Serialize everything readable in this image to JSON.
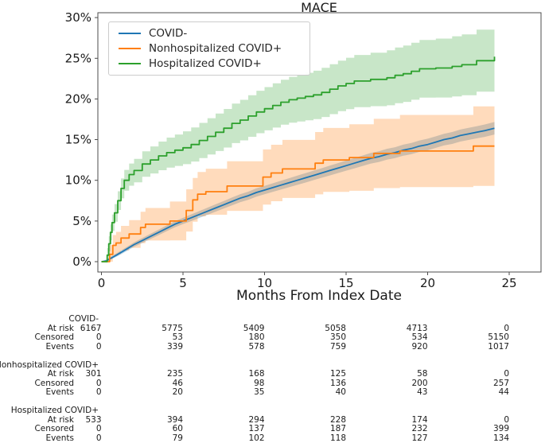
{
  "title": "MACE",
  "x_axis": {
    "label": "Months From Index Date",
    "ticks": [
      0,
      5,
      10,
      15,
      20,
      25
    ]
  },
  "y_axis": {
    "tick_labels": [
      "0%",
      "5%",
      "10%",
      "15%",
      "20%",
      "25%",
      "30%"
    ],
    "tick_values": [
      0,
      5,
      10,
      15,
      20,
      25,
      30
    ]
  },
  "legend": {
    "items": [
      {
        "label": "COVID-",
        "color": "#1f77b4"
      },
      {
        "label": "Nonhospitalized COVID+",
        "color": "#ff7f0e"
      },
      {
        "label": "Hospitalized COVID+",
        "color": "#2ca02c"
      }
    ]
  },
  "chart_data": {
    "type": "line",
    "title": "MACE",
    "xlabel": "Months From Index Date",
    "ylabel": "",
    "x_unit": "months",
    "y_unit": "percent cumulative incidence",
    "xlim": [
      0,
      27
    ],
    "ylim": [
      0,
      30
    ],
    "grid": false,
    "legend_position": "upper left",
    "series": [
      {
        "name": "COVID-",
        "color": "#1f77b4",
        "band_color": "rgba(31,119,180,0.30)",
        "step": false,
        "x": [
          0,
          0.3,
          1,
          1.5,
          2,
          2.5,
          3,
          3.5,
          4,
          4.5,
          5,
          5.5,
          6,
          6.5,
          7,
          7.5,
          8,
          8.5,
          9,
          9.5,
          10,
          10.5,
          11,
          11.5,
          12,
          12.5,
          13,
          13.5,
          14,
          14.5,
          15,
          15.5,
          16,
          16.5,
          17,
          17.5,
          18,
          18.5,
          19,
          19.5,
          20,
          20.5,
          21,
          21.5,
          22,
          22.5,
          23,
          23.5,
          24.1
        ],
        "y": [
          0,
          0.1,
          0.9,
          1.5,
          2.1,
          2.6,
          3.1,
          3.6,
          4.1,
          4.6,
          5.0,
          5.4,
          5.8,
          6.2,
          6.6,
          7.0,
          7.4,
          7.8,
          8.1,
          8.5,
          8.8,
          9.1,
          9.4,
          9.7,
          10.0,
          10.3,
          10.6,
          10.9,
          11.2,
          11.5,
          11.8,
          12.1,
          12.4,
          12.7,
          12.9,
          13.2,
          13.4,
          13.7,
          13.9,
          14.2,
          14.4,
          14.7,
          15.0,
          15.2,
          15.5,
          15.7,
          15.9,
          16.1,
          16.4
        ],
        "ci": [
          0,
          0.16,
          0.22,
          0.25,
          0.28,
          0.3,
          0.32,
          0.34,
          0.36,
          0.38,
          0.39,
          0.41,
          0.42,
          0.44,
          0.45,
          0.46,
          0.48,
          0.49,
          0.5,
          0.51,
          0.52,
          0.53,
          0.54,
          0.55,
          0.57,
          0.58,
          0.58,
          0.59,
          0.6,
          0.61,
          0.62,
          0.63,
          0.64,
          0.65,
          0.66,
          0.67,
          0.67,
          0.68,
          0.69,
          0.7,
          0.71,
          0.71,
          0.72,
          0.73,
          0.74,
          0.74,
          0.75,
          0.76,
          0.77
        ]
      },
      {
        "name": "Nonhospitalized COVID+",
        "color": "#ff7f0e",
        "band_color": "rgba(255,127,14,0.28)",
        "step": true,
        "x": [
          0,
          0.5,
          0.7,
          0.9,
          1.2,
          1.7,
          2.4,
          2.7,
          4.2,
          5.2,
          5.6,
          5.9,
          6.4,
          7.7,
          9.9,
          10.4,
          11.1,
          13.1,
          13.6,
          15.2,
          16.7,
          18.3,
          22.8,
          24.1
        ],
        "y": [
          0,
          0.9,
          2.0,
          2.3,
          2.9,
          3.4,
          4.2,
          4.6,
          5.0,
          6.3,
          7.6,
          8.3,
          8.6,
          9.3,
          10.4,
          10.9,
          11.4,
          12.1,
          12.5,
          12.8,
          13.3,
          13.6,
          14.2,
          14.2
        ],
        "ci": [
          0,
          1.15,
          1.27,
          1.37,
          1.5,
          1.7,
          1.93,
          2.0,
          2.39,
          2.6,
          2.68,
          2.73,
          2.83,
          3.05,
          3.39,
          3.47,
          3.57,
          3.83,
          3.93,
          4.09,
          4.26,
          4.44,
          4.89,
          5.02
        ]
      },
      {
        "name": "Hospitalized COVID+",
        "color": "#2ca02c",
        "band_color": "rgba(44,160,44,0.26)",
        "step": true,
        "x": [
          0,
          0.35,
          0.45,
          0.55,
          0.65,
          0.8,
          1.0,
          1.2,
          1.4,
          1.7,
          2.0,
          2.5,
          3.0,
          3.5,
          4.0,
          4.5,
          5.0,
          5.5,
          6.0,
          6.5,
          7.0,
          7.5,
          8.0,
          8.5,
          9.0,
          9.5,
          10.0,
          10.5,
          11.0,
          11.5,
          12.0,
          12.5,
          13.0,
          13.5,
          14.0,
          14.5,
          15.0,
          15.5,
          16.5,
          17.5,
          18.0,
          18.5,
          19.0,
          19.5,
          20.5,
          21.5,
          22.1,
          23.0,
          24.1
        ],
        "y": [
          0,
          0.8,
          2.2,
          3.6,
          4.8,
          6.0,
          7.5,
          9.0,
          10.0,
          10.7,
          11.2,
          12.0,
          12.5,
          13.0,
          13.4,
          13.7,
          14.0,
          14.4,
          14.9,
          15.4,
          15.9,
          16.4,
          17.0,
          17.4,
          17.9,
          18.4,
          18.8,
          19.2,
          19.6,
          19.9,
          20.1,
          20.3,
          20.5,
          20.8,
          21.2,
          21.6,
          21.9,
          22.2,
          22.4,
          22.6,
          22.9,
          23.1,
          23.4,
          23.7,
          23.8,
          24.0,
          24.2,
          24.7,
          25.2
        ],
        "ci": [
          0,
          0.86,
          0.92,
          0.97,
          1.01,
          1.08,
          1.15,
          1.22,
          1.28,
          1.36,
          1.44,
          1.56,
          1.66,
          1.76,
          1.85,
          1.93,
          2.02,
          2.09,
          2.16,
          2.23,
          2.3,
          2.37,
          2.43,
          2.49,
          2.55,
          2.61,
          2.66,
          2.72,
          2.77,
          2.82,
          2.87,
          2.92,
          2.97,
          3.02,
          3.07,
          3.11,
          3.16,
          3.21,
          3.29,
          3.38,
          3.42,
          3.46,
          3.5,
          3.54,
          3.62,
          3.7,
          3.74,
          3.81,
          3.89
        ]
      }
    ]
  },
  "risk_table": {
    "row_labels": [
      "At risk",
      "Censored",
      "Events"
    ],
    "columns_months": [
      0,
      5,
      10,
      15,
      20,
      25
    ],
    "groups": [
      {
        "name": "COVID-",
        "at_risk": [
          6167,
          5775,
          5409,
          5058,
          4713,
          0
        ],
        "censored": [
          0,
          53,
          180,
          350,
          534,
          5150
        ],
        "events": [
          0,
          339,
          578,
          759,
          920,
          1017
        ]
      },
      {
        "name": "Nonhospitalized COVID+",
        "at_risk": [
          301,
          235,
          168,
          125,
          58,
          0
        ],
        "censored": [
          0,
          46,
          98,
          136,
          200,
          257
        ],
        "events": [
          0,
          20,
          35,
          40,
          43,
          44
        ]
      },
      {
        "name": "Hospitalized COVID+",
        "at_risk": [
          533,
          394,
          294,
          228,
          174,
          0
        ],
        "censored": [
          0,
          60,
          137,
          187,
          232,
          399
        ],
        "events": [
          0,
          79,
          102,
          118,
          127,
          134
        ]
      }
    ]
  }
}
